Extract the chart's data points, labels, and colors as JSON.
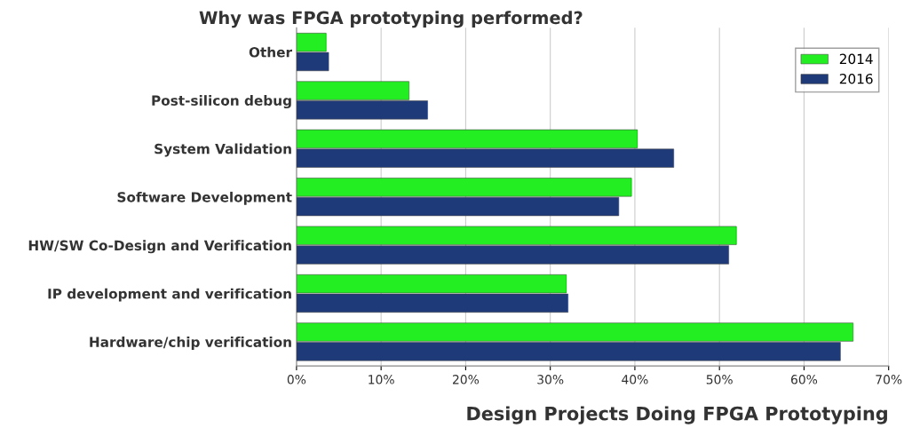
{
  "chart_data": {
    "type": "bar",
    "orientation": "horizontal",
    "title": "Why was FPGA prototyping performed?",
    "xlabel": "Design Projects Doing FPGA Prototyping",
    "categories": [
      "Other",
      "Post-silicon debug",
      "System Validation",
      "Software Development",
      "HW/SW Co-Design and Verification",
      "IP development and verification",
      "Hardware/chip verification"
    ],
    "series": [
      {
        "name": "2014",
        "color": "#22ee22",
        "values": [
          3.5,
          13.3,
          40.3,
          39.6,
          52.0,
          31.9,
          65.8
        ]
      },
      {
        "name": "2016",
        "color": "#1f3a78",
        "values": [
          3.8,
          15.5,
          44.6,
          38.1,
          51.1,
          32.1,
          64.3
        ]
      }
    ],
    "xlim": [
      0,
      70
    ],
    "xticks": [
      {
        "value": 0,
        "label": "0%"
      },
      {
        "value": 10,
        "label": "10%"
      },
      {
        "value": 20,
        "label": "20%"
      },
      {
        "value": 30,
        "label": "30%"
      },
      {
        "value": 40,
        "label": "40%"
      },
      {
        "value": 50,
        "label": "50%"
      },
      {
        "value": 60,
        "label": "60%"
      },
      {
        "value": 70,
        "label": "70%"
      }
    ],
    "grid": "x",
    "legend": "top right"
  }
}
